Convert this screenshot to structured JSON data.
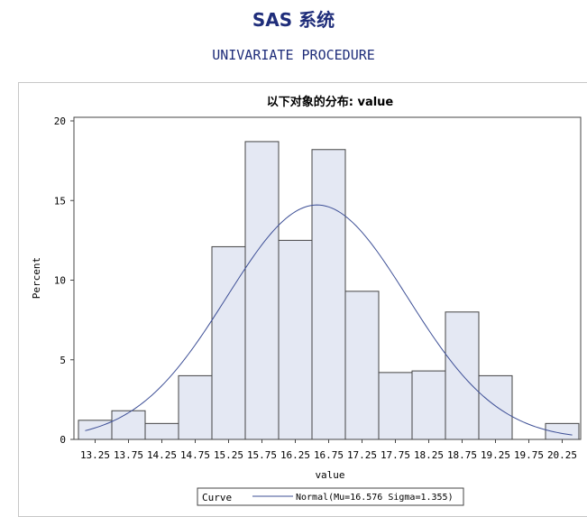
{
  "header": {
    "system_title": "SAS 系统",
    "procedure_title": "UNIVARIATE PROCEDURE"
  },
  "colors": {
    "title": "#1f2d7a",
    "bar_fill": "#e4e8f3",
    "bar_stroke": "#444444",
    "curve": "#3d4f96",
    "axis": "#444444"
  },
  "chart_data": {
    "type": "bar",
    "title": "以下对象的分布: value",
    "xlabel": "value",
    "ylabel": "Percent",
    "ylim": [
      0,
      20
    ],
    "yticks": [
      0,
      5,
      10,
      15,
      20
    ],
    "bin_width": 0.5,
    "categories": [
      "13.25",
      "13.75",
      "14.25",
      "14.75",
      "15.25",
      "15.75",
      "16.25",
      "16.75",
      "17.25",
      "17.75",
      "18.25",
      "18.75",
      "19.25",
      "19.75",
      "20.25"
    ],
    "values": [
      1.2,
      1.8,
      1.0,
      4.0,
      12.1,
      18.7,
      12.5,
      18.2,
      9.3,
      4.2,
      4.3,
      8.0,
      4.0,
      0,
      1.0
    ],
    "curve": {
      "type": "normal",
      "mu": 16.576,
      "sigma": 1.355,
      "x_range": [
        13.1,
        20.4
      ]
    },
    "legend": {
      "title": "Curve",
      "entry": "Normal(Mu=16.576 Sigma=1.355)",
      "position": "bottom"
    }
  }
}
